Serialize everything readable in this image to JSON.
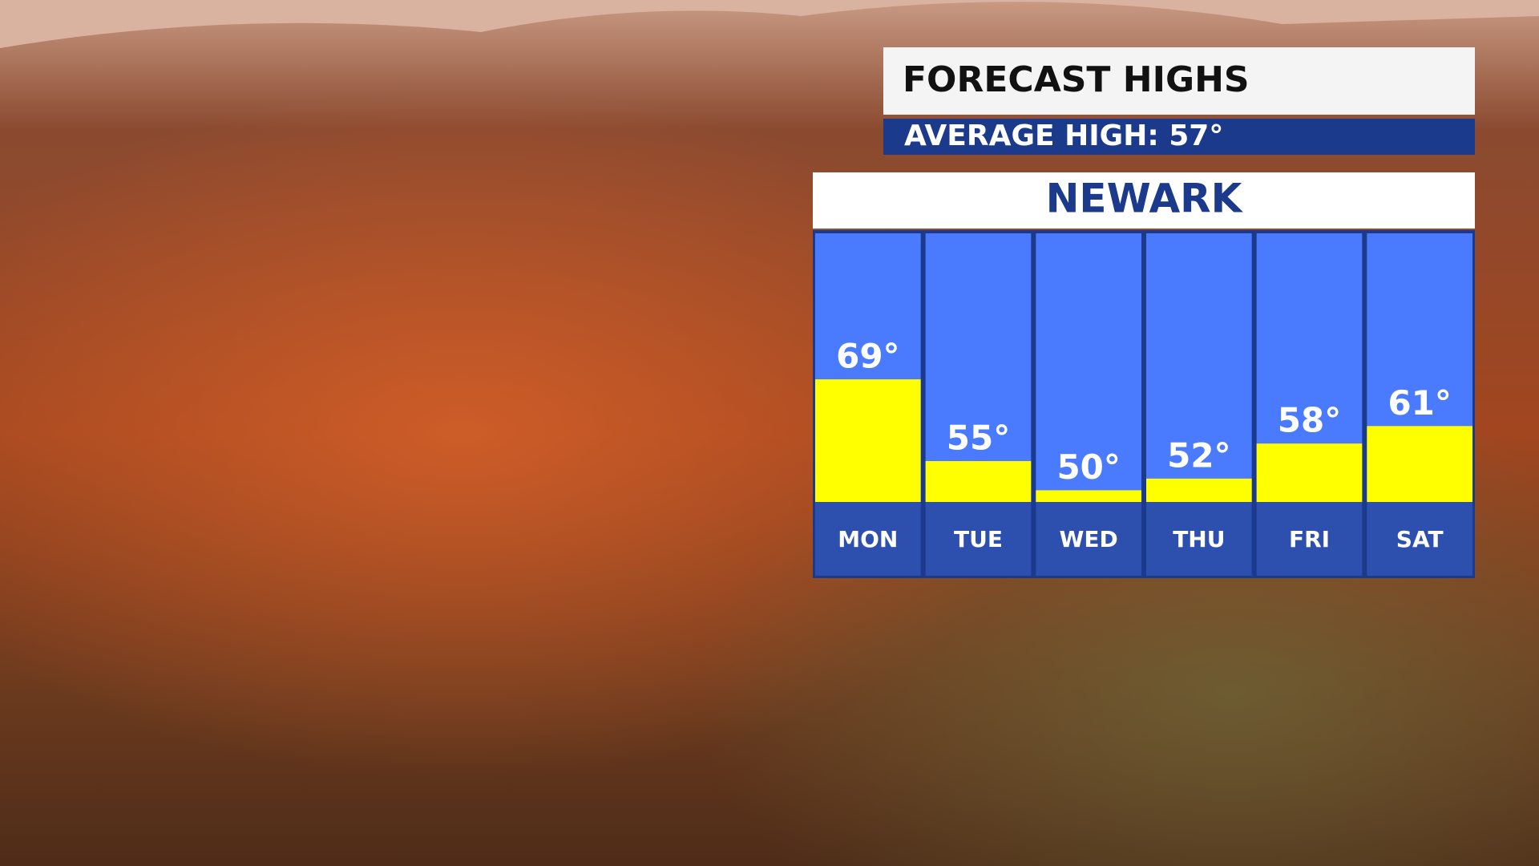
{
  "chart_data": {
    "type": "bar",
    "title": "FORECAST HIGHS",
    "subtitle": "AVERAGE HIGH: 57°",
    "location": "NEWARK",
    "categories": [
      "MON",
      "TUE",
      "WED",
      "THU",
      "FRI",
      "SAT"
    ],
    "values": [
      69,
      55,
      50,
      52,
      58,
      61
    ],
    "value_labels": [
      "69°",
      "55°",
      "50°",
      "52°",
      "58°",
      "61°"
    ],
    "color": "#ffff00",
    "ylim": [
      48,
      94
    ]
  }
}
